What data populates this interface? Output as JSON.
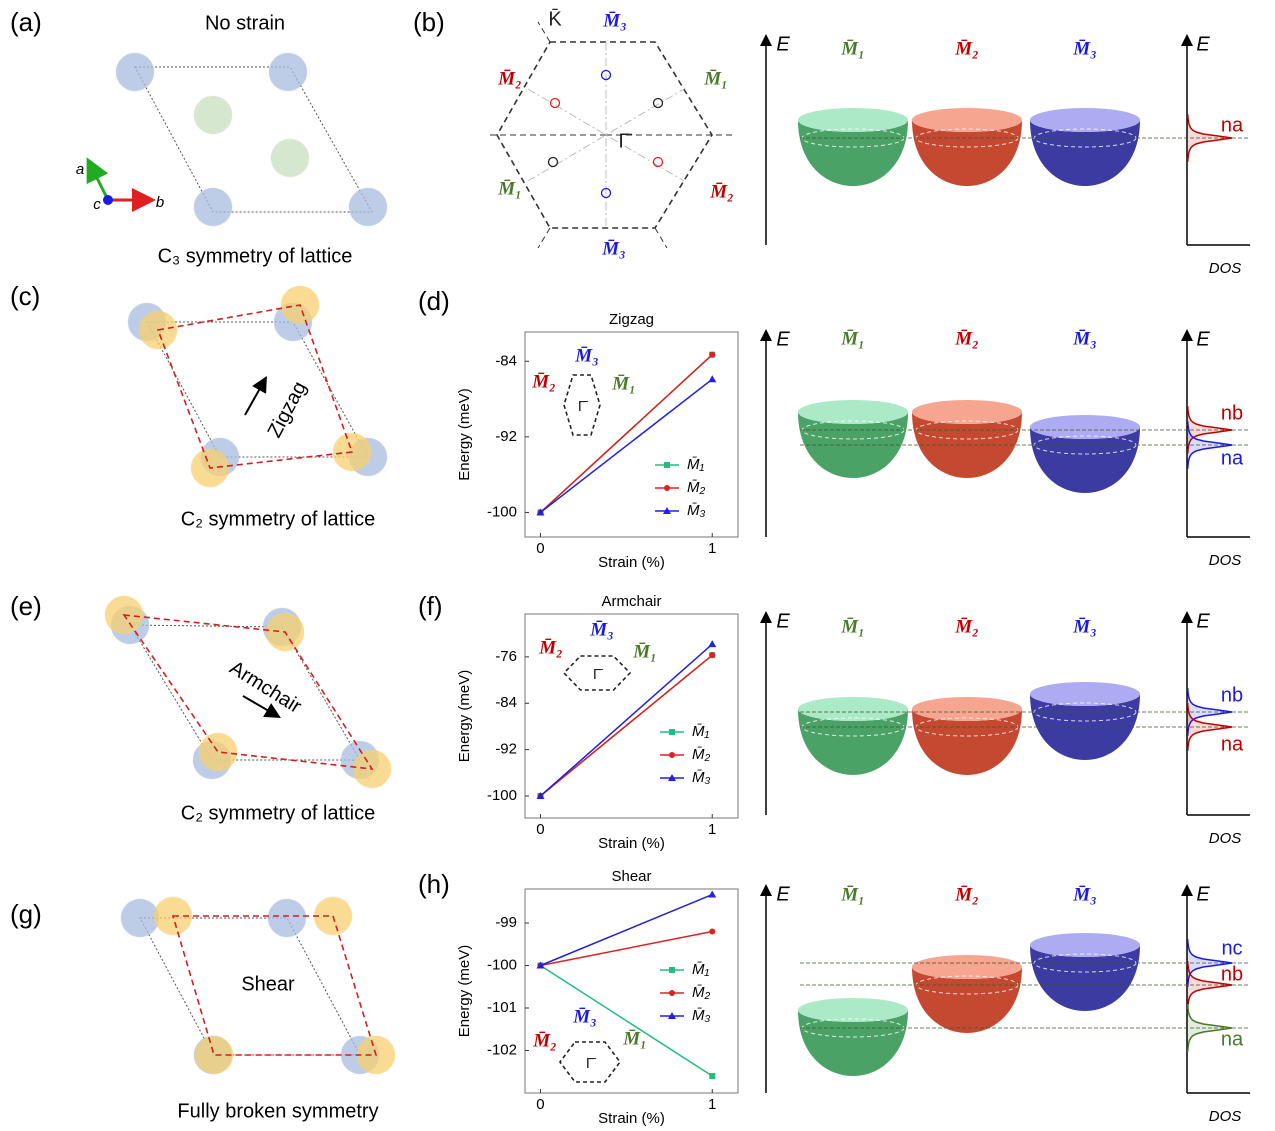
{
  "panels": {
    "a": {
      "label": "(a)",
      "title": "No strain",
      "caption": "C₃ symmetry of lattice",
      "axes": [
        "a",
        "b",
        "c"
      ]
    },
    "b": {
      "label": "(b)",
      "bz_labels": [
        "K̄",
        "M̄₃",
        "M̄₁",
        "M̄₂",
        "M̄₁",
        "M̄₂",
        "M̄₃",
        "Γ̄"
      ]
    },
    "c": {
      "label": "(c)",
      "arrow": "Zigzag",
      "caption": "C₂ symmetry of lattice"
    },
    "d": {
      "label": "(d)"
    },
    "e": {
      "label": "(e)",
      "arrow": "Armchair",
      "caption": "C₂ symmetry of lattice"
    },
    "f": {
      "label": "(f)"
    },
    "g": {
      "label": "(g)",
      "arrow": "Shear",
      "caption": "Fully broken symmetry"
    },
    "h": {
      "label": "(h)"
    }
  },
  "bands": [
    {
      "energy_axis": "E",
      "dos_axis": "DOS",
      "valleys": [
        "M̄₁",
        "M̄₂",
        "M̄₃"
      ],
      "peaks": [
        "na"
      ]
    },
    {
      "energy_axis": "E",
      "dos_axis": "DOS",
      "valleys": [
        "M̄₁",
        "M̄₂",
        "M̄₃"
      ],
      "peaks": [
        "nb",
        "na"
      ]
    },
    {
      "energy_axis": "E",
      "dos_axis": "DOS",
      "valleys": [
        "M̄₁",
        "M̄₂",
        "M̄₃"
      ],
      "peaks": [
        "nb",
        "na"
      ]
    },
    {
      "energy_axis": "E",
      "dos_axis": "DOS",
      "valleys": [
        "M̄₁",
        "M̄₂",
        "M̄₃"
      ],
      "peaks": [
        "nc",
        "nb",
        "na"
      ]
    }
  ],
  "chart_data": [
    {
      "type": "line",
      "title": "Zigzag",
      "x_label": "Strain (%)",
      "y_label": "Energy (meV)",
      "x": [
        0,
        1
      ],
      "xlim": [
        -0.09,
        1.15
      ],
      "xticks": [
        0,
        1
      ],
      "ylim": [
        -102.6,
        -80.9
      ],
      "yticks": [
        -84,
        -92,
        -100
      ],
      "inset_labels": [
        "M̄₂",
        "M̄₃",
        "M̄₁",
        "Γ̄"
      ],
      "series": [
        {
          "name": "M̄₁",
          "color": "#1fbf7f",
          "marker": "square",
          "values": [
            -100,
            -83.3
          ]
        },
        {
          "name": "M̄₂",
          "color": "#e02020",
          "marker": "circle",
          "values": [
            -100,
            -83.3
          ]
        },
        {
          "name": "M̄₃",
          "color": "#2020e0",
          "marker": "triangle",
          "values": [
            -100,
            -85.9
          ]
        }
      ]
    },
    {
      "type": "line",
      "title": "Armchair",
      "x_label": "Strain (%)",
      "y_label": "Energy (meV)",
      "x": [
        0,
        1
      ],
      "xlim": [
        -0.09,
        1.15
      ],
      "xticks": [
        0,
        1
      ],
      "ylim": [
        -103.8,
        -68.6
      ],
      "yticks": [
        -76,
        -84,
        -92,
        -100
      ],
      "inset_labels": [
        "M̄₂",
        "M̄₃",
        "M̄₁",
        "Γ̄"
      ],
      "series": [
        {
          "name": "M̄₁",
          "color": "#1fbf7f",
          "marker": "square",
          "values": [
            -100,
            -75.7
          ]
        },
        {
          "name": "M̄₂",
          "color": "#e02020",
          "marker": "circle",
          "values": [
            -100,
            -75.7
          ]
        },
        {
          "name": "M̄₃",
          "color": "#2020e0",
          "marker": "triangle",
          "values": [
            -100,
            -73.8
          ]
        }
      ]
    },
    {
      "type": "line",
      "title": "Shear",
      "x_label": "Strain (%)",
      "y_label": "Energy (meV)",
      "x": [
        0,
        1
      ],
      "xlim": [
        -0.09,
        1.15
      ],
      "xticks": [
        0,
        1
      ],
      "ylim": [
        -103.0,
        -98.2
      ],
      "yticks": [
        -99,
        -100,
        -101,
        -102
      ],
      "inset_labels": [
        "M̄₂",
        "M̄₃",
        "M̄₁",
        "Γ̄"
      ],
      "series": [
        {
          "name": "M̄₁",
          "color": "#1fbf7f",
          "marker": "square",
          "values": [
            -100,
            -102.6
          ]
        },
        {
          "name": "M̄₂",
          "color": "#e02020",
          "marker": "circle",
          "values": [
            -100,
            -99.2
          ]
        },
        {
          "name": "M̄₃",
          "color": "#2020e0",
          "marker": "triangle",
          "values": [
            -100,
            -98.33
          ]
        }
      ]
    }
  ]
}
